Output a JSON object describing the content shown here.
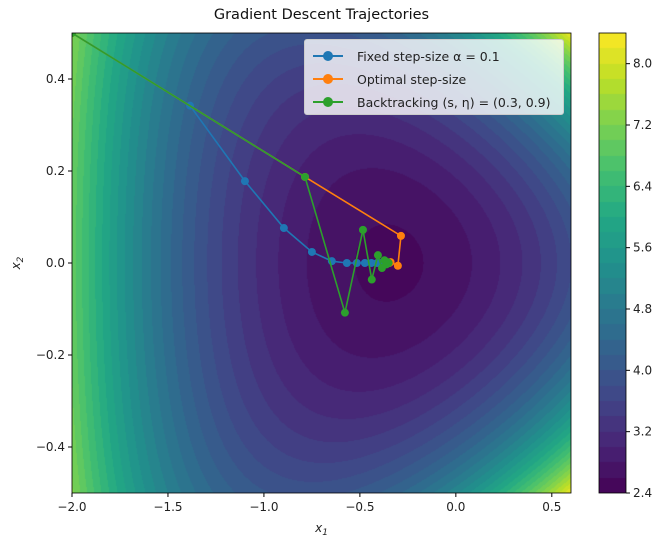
{
  "chart_data": {
    "type": "line",
    "title": "Gradient Descent Trajectories",
    "xlabel": "x1",
    "ylabel": "x2",
    "xlim": [
      -2.0,
      0.6
    ],
    "ylim": [
      -0.5,
      0.5
    ],
    "xticks": [
      "-2.0",
      "-1.5",
      "-1.0",
      "-0.5",
      "0.0",
      "0.5"
    ],
    "xtick_values": [
      -2.0,
      -1.5,
      -1.0,
      -0.5,
      0.0,
      0.5
    ],
    "yticks": [
      "-0.4",
      "-0.2",
      "0.0",
      "0.2",
      "0.4"
    ],
    "ytick_values": [
      -0.4,
      -0.2,
      0.0,
      0.2,
      0.4
    ],
    "background": {
      "type": "contourf",
      "function": "exp(x1+3*x2-0.1)+exp(x1-3*x2-0.1)+exp(-x1-0.1)",
      "colormap": "viridis",
      "levels_step": 0.2
    },
    "colorbar": {
      "range": [
        2.4,
        8.4
      ],
      "ticks": [
        "2.4",
        "3.2",
        "4.0",
        "4.8",
        "5.6",
        "6.4",
        "7.2",
        "8.0"
      ],
      "tick_values": [
        2.4,
        3.2,
        4.0,
        4.8,
        5.6,
        6.4,
        7.2,
        8.0
      ]
    },
    "legend_position": "top-right",
    "series": [
      {
        "name": "Fixed step-size α = 0.1",
        "color": "#1f77b4",
        "x": [
          -2.0,
          -1.385,
          -1.099,
          -0.896,
          -0.75,
          -0.646,
          -0.568,
          -0.516,
          -0.474,
          -0.44,
          -0.41,
          -0.39,
          -0.375,
          -0.365
        ],
        "y": [
          0.5,
          0.342,
          0.178,
          0.076,
          0.024,
          0.004,
          0.0,
          0.0,
          0.0,
          0.0,
          0.0,
          0.0,
          0.0,
          0.0
        ],
        "markers_from": 1
      },
      {
        "name": "Optimal step-size",
        "color": "#ff7f0e",
        "x": [
          -2.0,
          -0.786,
          -0.286,
          -0.302,
          -0.34,
          -0.347
        ],
        "y": [
          0.5,
          0.187,
          0.059,
          -0.006,
          0.002,
          0.0
        ]
      },
      {
        "name": "Backtracking (s, η) = (0.3, 0.9)",
        "color": "#2ca02c",
        "x": [
          -2.0,
          -0.786,
          -0.578,
          -0.484,
          -0.438,
          -0.406,
          -0.385,
          -0.372,
          -0.362,
          -0.355,
          -0.35
        ],
        "y": [
          0.5,
          0.187,
          -0.108,
          0.072,
          -0.036,
          0.017,
          -0.011,
          0.006,
          -0.003,
          0.002,
          0.0
        ]
      }
    ]
  }
}
